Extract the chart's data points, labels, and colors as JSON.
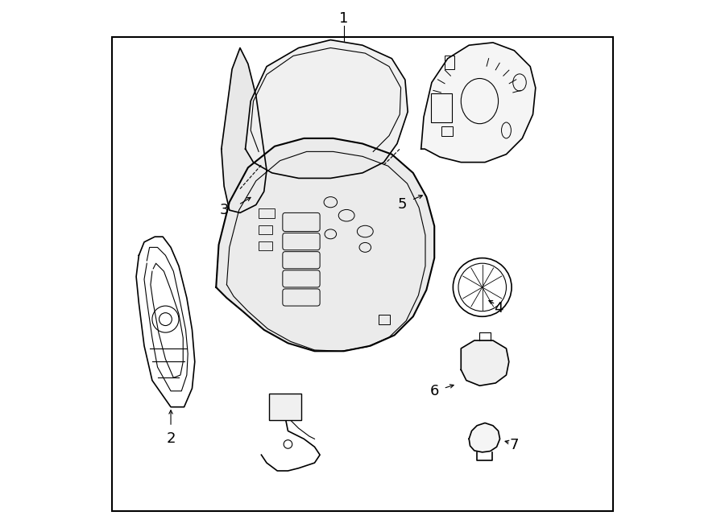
{
  "background_color": "#ffffff",
  "border_color": "#000000",
  "line_color": "#000000",
  "figure_width": 9.0,
  "figure_height": 6.61,
  "dpi": 100
}
